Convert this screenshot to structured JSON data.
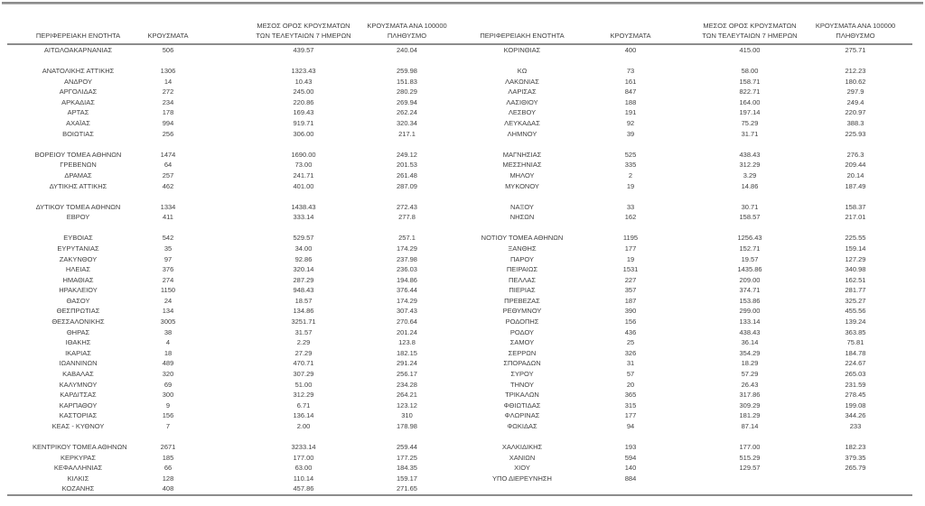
{
  "colors": {
    "rule": "#8c8c8c",
    "text": "#3f3f3f",
    "background": "#ffffff"
  },
  "table": {
    "headers": {
      "region": "ΠΕΡΙΦΕΡΕΙΑΚΗ ΕΝΟΤΗΤΑ",
      "cases": "ΚΡΟΥΣΜΑΤΑ",
      "avg7": "ΜΕΣΟΣ ΟΡΟΣ ΚΡΟΥΣΜΑΤΩΝ\nΤΩΝ ΤΕΛΕΥΤΑΙΩΝ 7 ΗΜΕΡΩΝ",
      "per100k": "ΚΡΟΥΣΜΑΤΑ ΑΝΑ 100000\nΠΛΗΘΥΣΜΟ"
    },
    "rows": [
      {
        "left": [
          "ΑΙΤΩΛΟΑΚΑΡΝΑΝΙΑΣ",
          "506",
          "439.57",
          "240.04"
        ],
        "right": [
          "ΚΟΡΙΝΘΙΑΣ",
          "400",
          "415.00",
          "275.71"
        ]
      },
      {
        "spacer": true
      },
      {
        "left": [
          "ΑΝΑΤΟΛΙΚΗΣ ΑΤΤΙΚΗΣ",
          "1306",
          "1323.43",
          "259.98"
        ],
        "right": [
          "ΚΩ",
          "73",
          "58.00",
          "212.23"
        ]
      },
      {
        "left": [
          "ΑΝΔΡΟΥ",
          "14",
          "10.43",
          "151.83"
        ],
        "right": [
          "ΛΑΚΩΝΙΑΣ",
          "161",
          "158.71",
          "180.62"
        ]
      },
      {
        "left": [
          "ΑΡΓΟΛΙΔΑΣ",
          "272",
          "245.00",
          "280.29"
        ],
        "right": [
          "ΛΑΡΙΣΑΣ",
          "847",
          "822.71",
          "297.9"
        ]
      },
      {
        "left": [
          "ΑΡΚΑΔΙΑΣ",
          "234",
          "220.86",
          "269.94"
        ],
        "right": [
          "ΛΑΣΙΘΙΟΥ",
          "188",
          "164.00",
          "249.4"
        ]
      },
      {
        "left": [
          "ΑΡΤΑΣ",
          "178",
          "169.43",
          "262.24"
        ],
        "right": [
          "ΛΕΣΒΟΥ",
          "191",
          "197.14",
          "220.97"
        ]
      },
      {
        "left": [
          "ΑΧΑΪΑΣ",
          "994",
          "919.71",
          "320.34"
        ],
        "right": [
          "ΛΕΥΚΑΔΑΣ",
          "92",
          "75.29",
          "388.3"
        ]
      },
      {
        "left": [
          "ΒΟΙΩΤΙΑΣ",
          "256",
          "306.00",
          "217.1"
        ],
        "right": [
          "ΛΗΜΝΟΥ",
          "39",
          "31.71",
          "225.93"
        ]
      },
      {
        "spacer": true
      },
      {
        "left": [
          "ΒΟΡΕΙΟΥ ΤΟΜΕΑ ΑΘΗΝΩΝ",
          "1474",
          "1690.00",
          "249.12"
        ],
        "right": [
          "ΜΑΓΝΗΣΙΑΣ",
          "525",
          "438.43",
          "276.3"
        ]
      },
      {
        "left": [
          "ΓΡΕΒΕΝΩΝ",
          "64",
          "73.00",
          "201.53"
        ],
        "right": [
          "ΜΕΣΣΗΝΙΑΣ",
          "335",
          "312.29",
          "209.44"
        ]
      },
      {
        "left": [
          "ΔΡΑΜΑΣ",
          "257",
          "241.71",
          "261.48"
        ],
        "right": [
          "ΜΗΛΟΥ",
          "2",
          "3.29",
          "20.14"
        ]
      },
      {
        "left": [
          "ΔΥΤΙΚΗΣ ΑΤΤΙΚΗΣ",
          "462",
          "401.00",
          "287.09"
        ],
        "right": [
          "ΜΥΚΟΝΟΥ",
          "19",
          "14.86",
          "187.49"
        ]
      },
      {
        "spacer": true
      },
      {
        "left": [
          "ΔΥΤΙΚΟΥ ΤΟΜΕΑ ΑΘΗΝΩΝ",
          "1334",
          "1438.43",
          "272.43"
        ],
        "right": [
          "ΝΑΞΟΥ",
          "33",
          "30.71",
          "158.37"
        ]
      },
      {
        "left": [
          "ΕΒΡΟΥ",
          "411",
          "333.14",
          "277.8"
        ],
        "right": [
          "ΝΗΣΩΝ",
          "162",
          "158.57",
          "217.01"
        ]
      },
      {
        "spacer": true
      },
      {
        "left": [
          "ΕΥΒΟΙΑΣ",
          "542",
          "529.57",
          "257.1"
        ],
        "right": [
          "ΝΟΤΙΟΥ ΤΟΜΕΑ ΑΘΗΝΩΝ",
          "1195",
          "1256.43",
          "225.55"
        ]
      },
      {
        "left": [
          "ΕΥΡΥΤΑΝΙΑΣ",
          "35",
          "34.00",
          "174.29"
        ],
        "right": [
          "ΞΑΝΘΗΣ",
          "177",
          "152.71",
          "159.14"
        ]
      },
      {
        "left": [
          "ΖΑΚΥΝΘΟΥ",
          "97",
          "92.86",
          "237.98"
        ],
        "right": [
          "ΠΑΡΟΥ",
          "19",
          "19.57",
          "127.29"
        ]
      },
      {
        "left": [
          "ΗΛΕΙΑΣ",
          "376",
          "320.14",
          "236.03"
        ],
        "right": [
          "ΠΕΙΡΑΙΩΣ",
          "1531",
          "1435.86",
          "340.98"
        ]
      },
      {
        "left": [
          "ΗΜΑΘΙΑΣ",
          "274",
          "287.29",
          "194.86"
        ],
        "right": [
          "ΠΕΛΛΑΣ",
          "227",
          "209.00",
          "162.51"
        ]
      },
      {
        "left": [
          "ΗΡΑΚΛΕΙΟΥ",
          "1150",
          "948.43",
          "376.44"
        ],
        "right": [
          "ΠΙΕΡΙΑΣ",
          "357",
          "374.71",
          "281.77"
        ]
      },
      {
        "left": [
          "ΘΑΣΟΥ",
          "24",
          "18.57",
          "174.29"
        ],
        "right": [
          "ΠΡΕΒΕΖΑΣ",
          "187",
          "153.86",
          "325.27"
        ]
      },
      {
        "left": [
          "ΘΕΣΠΡΩΤΙΑΣ",
          "134",
          "134.86",
          "307.43"
        ],
        "right": [
          "ΡΕΘΥΜΝΟΥ",
          "390",
          "299.00",
          "455.56"
        ]
      },
      {
        "left": [
          "ΘΕΣΣΑΛΟΝΙΚΗΣ",
          "3005",
          "3251.71",
          "270.64"
        ],
        "right": [
          "ΡΟΔΟΠΗΣ",
          "156",
          "133.14",
          "139.24"
        ]
      },
      {
        "left": [
          "ΘΗΡΑΣ",
          "38",
          "31.57",
          "201.24"
        ],
        "right": [
          "ΡΟΔΟΥ",
          "436",
          "438.43",
          "363.85"
        ]
      },
      {
        "left": [
          "ΙΘΑΚΗΣ",
          "4",
          "2.29",
          "123.8"
        ],
        "right": [
          "ΣΑΜΟΥ",
          "25",
          "36.14",
          "75.81"
        ]
      },
      {
        "left": [
          "ΙΚΑΡΙΑΣ",
          "18",
          "27.29",
          "182.15"
        ],
        "right": [
          "ΣΕΡΡΩΝ",
          "326",
          "354.29",
          "184.78"
        ]
      },
      {
        "left": [
          "ΙΩΑΝΝΙΝΩΝ",
          "489",
          "470.71",
          "291.24"
        ],
        "right": [
          "ΣΠΟΡΑΔΩΝ",
          "31",
          "18.29",
          "224.67"
        ]
      },
      {
        "left": [
          "ΚΑΒΑΛΑΣ",
          "320",
          "307.29",
          "256.17"
        ],
        "right": [
          "ΣΥΡΟΥ",
          "57",
          "57.29",
          "265.03"
        ]
      },
      {
        "left": [
          "ΚΑΛΥΜΝΟΥ",
          "69",
          "51.00",
          "234.28"
        ],
        "right": [
          "ΤΗΝΟΥ",
          "20",
          "26.43",
          "231.59"
        ]
      },
      {
        "left": [
          "ΚΑΡΔΙΤΣΑΣ",
          "300",
          "312.29",
          "264.21"
        ],
        "right": [
          "ΤΡΙΚΑΛΩΝ",
          "365",
          "317.86",
          "278.45"
        ]
      },
      {
        "left": [
          "ΚΑΡΠΑΘΟΥ",
          "9",
          "6.71",
          "123.12"
        ],
        "right": [
          "ΦΘΙΩΤΙΔΑΣ",
          "315",
          "309.29",
          "199.08"
        ]
      },
      {
        "left": [
          "ΚΑΣΤΟΡΙΑΣ",
          "156",
          "136.14",
          "310"
        ],
        "right": [
          "ΦΛΩΡΙΝΑΣ",
          "177",
          "181.29",
          "344.26"
        ]
      },
      {
        "left": [
          "ΚΕΑΣ - ΚΥΘΝΟΥ",
          "7",
          "2.00",
          "178.98"
        ],
        "right": [
          "ΦΩΚΙΔΑΣ",
          "94",
          "87.14",
          "233"
        ]
      },
      {
        "spacer": true
      },
      {
        "left": [
          "ΚΕΝΤΡΙΚΟΥ ΤΟΜΕΑ ΑΘΗΝΩΝ",
          "2671",
          "3233.14",
          "259.44"
        ],
        "right": [
          "ΧΑΛΚΙΔΙΚΗΣ",
          "193",
          "177.00",
          "182.23"
        ]
      },
      {
        "left": [
          "ΚΕΡΚΥΡΑΣ",
          "185",
          "177.00",
          "177.25"
        ],
        "right": [
          "ΧΑΝΙΩΝ",
          "594",
          "515.29",
          "379.35"
        ]
      },
      {
        "left": [
          "ΚΕΦΑΛΛΗΝΙΑΣ",
          "66",
          "63.00",
          "184.35"
        ],
        "right": [
          "ΧΙΟΥ",
          "140",
          "129.57",
          "265.79"
        ]
      },
      {
        "left": [
          "ΚΙΛΚΙΣ",
          "128",
          "110.14",
          "159.17"
        ],
        "right": [
          "ΥΠΟ ΔΙΕΡΕΥΝΗΣΗ",
          "884",
          "",
          ""
        ]
      },
      {
        "left": [
          "ΚΟΖΑΝΗΣ",
          "408",
          "457.86",
          "271.65"
        ],
        "right": null
      }
    ]
  }
}
